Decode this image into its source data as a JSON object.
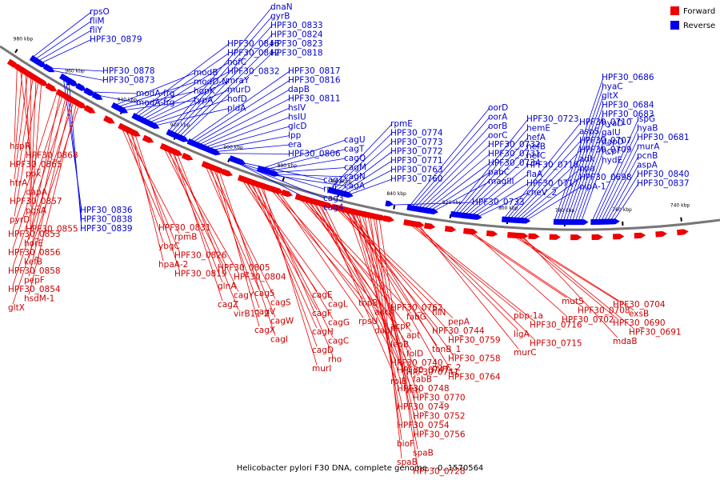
{
  "colors": {
    "forward": "#ee0000",
    "reverse": "#0000ee",
    "forward_text": "#cc0000",
    "reverse_text": "#0000cc",
    "backbone": "#777777"
  },
  "legend": {
    "forward": "Forward",
    "reverse": "Reverse"
  },
  "caption": "Helicobacter pylori F30 DNA, complete genome. - 0..1570564",
  "scale_labels": [
    "980 kbp",
    "960 kbp",
    "940 kbp",
    "920 kbp",
    "900 kbp",
    "880 kbp",
    "860 kbp",
    "840 kbp",
    "820 kbp",
    "800 kbp",
    "780 kbp",
    "760 kbp",
    "740 kbp"
  ],
  "reverse_genes": [
    "rpsO",
    "fliM",
    "fliY",
    "HPF30_0879",
    "HPF30_0878",
    "HPF30_0873",
    "modA-frg",
    "modA-frg",
    "modB",
    "modD-N",
    "hopK",
    "typA",
    "HPF30_0843",
    "HPF30_0842",
    "hofC",
    "HPF30_0832",
    "mraY",
    "murD",
    "hofD",
    "pldA",
    "dnaN",
    "gyrB",
    "HPF30_0833",
    "HPF30_0824",
    "HPF30_0823",
    "HPF30_0818",
    "HPF30_0817",
    "HPF30_0816",
    "dapB",
    "HPF30_0811",
    "hslV",
    "hslU",
    "glcD",
    "lpp",
    "era",
    "HPF30_0806",
    "cag1",
    "rplI",
    "cag3",
    "cag4",
    "cagU",
    "cagT",
    "cagQ",
    "cagM",
    "cagN",
    "cagA",
    "rpmE",
    "HPF30_0774",
    "HPF30_0773",
    "HPF30_0772",
    "HPF30_0771",
    "HPF30_0763",
    "HPF30_0760",
    "HPF30_0733",
    "oorD",
    "oorA",
    "oorB",
    "oorC",
    "HPF30_0732",
    "HPF30_0731",
    "HPF30_0734",
    "pabC",
    "magIII",
    "HPF30_0723",
    "hemE",
    "hefA",
    "hefB",
    "hefC",
    "HPF30_0718",
    "flaA",
    "HPF30_0717",
    "cheV_2",
    "HPF30_0710",
    "aspS",
    "HPF30_0707",
    "HPF30_0709",
    "adk",
    "ppa",
    "HPF30_0698",
    "oipA-1",
    "HPF30_0686",
    "hyaC",
    "gltX",
    "HPF30_0684",
    "HPF30_0683",
    "hyaD",
    "galU",
    "dapD",
    "hcpF",
    "hydE",
    "ispG",
    "hyaB",
    "HPF30_0681",
    "murA",
    "pcnB",
    "aspA",
    "HPF30_0840",
    "HPF30_0837",
    "HPF30_0836",
    "HPF30_0838",
    "HPF30_0839"
  ],
  "forward_genes": [
    "hspR",
    "HPF30_0868",
    "HPF30_0865",
    "ppk",
    "htrA",
    "dapA",
    "HPF30_0857",
    "pgsA",
    "pyrD",
    "HPF30_0855",
    "HPF30_0853",
    "horE",
    "HPF30_0856",
    "kefB",
    "HPF30_0858",
    "pepF",
    "HPF30_0854",
    "hsdM-1",
    "gltX",
    "HPF30_0831",
    "rpmB",
    "ybgC",
    "HPF30_0826",
    "hpaA-2",
    "HPF30_0819",
    "HPF30_0805",
    "HPF30_0804",
    "glnA",
    "cagY",
    "cagZ",
    "virB11-2",
    "cag5",
    "cagS",
    "cagV",
    "cagW",
    "cagX",
    "cagI",
    "cagE",
    "cagL",
    "cagF",
    "cagG",
    "cagH",
    "cagC",
    "cagD",
    "rho",
    "murI",
    "tnpB",
    "accA",
    "rpsU",
    "dapF",
    "HPF30_0762",
    "fabG",
    "acpP",
    "apt",
    "lepB",
    "folD",
    "HPF30_0740",
    "HPF30_0741",
    "rpiB",
    "nth",
    "fliN",
    "pepA",
    "HPF30_0744",
    "HPF30_0759",
    "tonB_1",
    "HPF30_0758",
    "pyrC_2",
    "HPF30_0764",
    "HPF30_0747",
    "fabB",
    "HPF30_0748",
    "HPF30_0770",
    "HPF30_0749",
    "HPF30_0752",
    "HPF30_0754",
    "HPF30_0756",
    "bioF",
    "spaB",
    "spaB",
    "HPF30_0728",
    "pbp-1a",
    "HPF30_0716",
    "ligA",
    "HPF30_0715",
    "murC",
    "mutS",
    "HPF30_0708",
    "HPF30_0702",
    "HPF30_0704",
    "exsB",
    "HPF30_0690",
    "HPF30_0691",
    "mdaB"
  ]
}
